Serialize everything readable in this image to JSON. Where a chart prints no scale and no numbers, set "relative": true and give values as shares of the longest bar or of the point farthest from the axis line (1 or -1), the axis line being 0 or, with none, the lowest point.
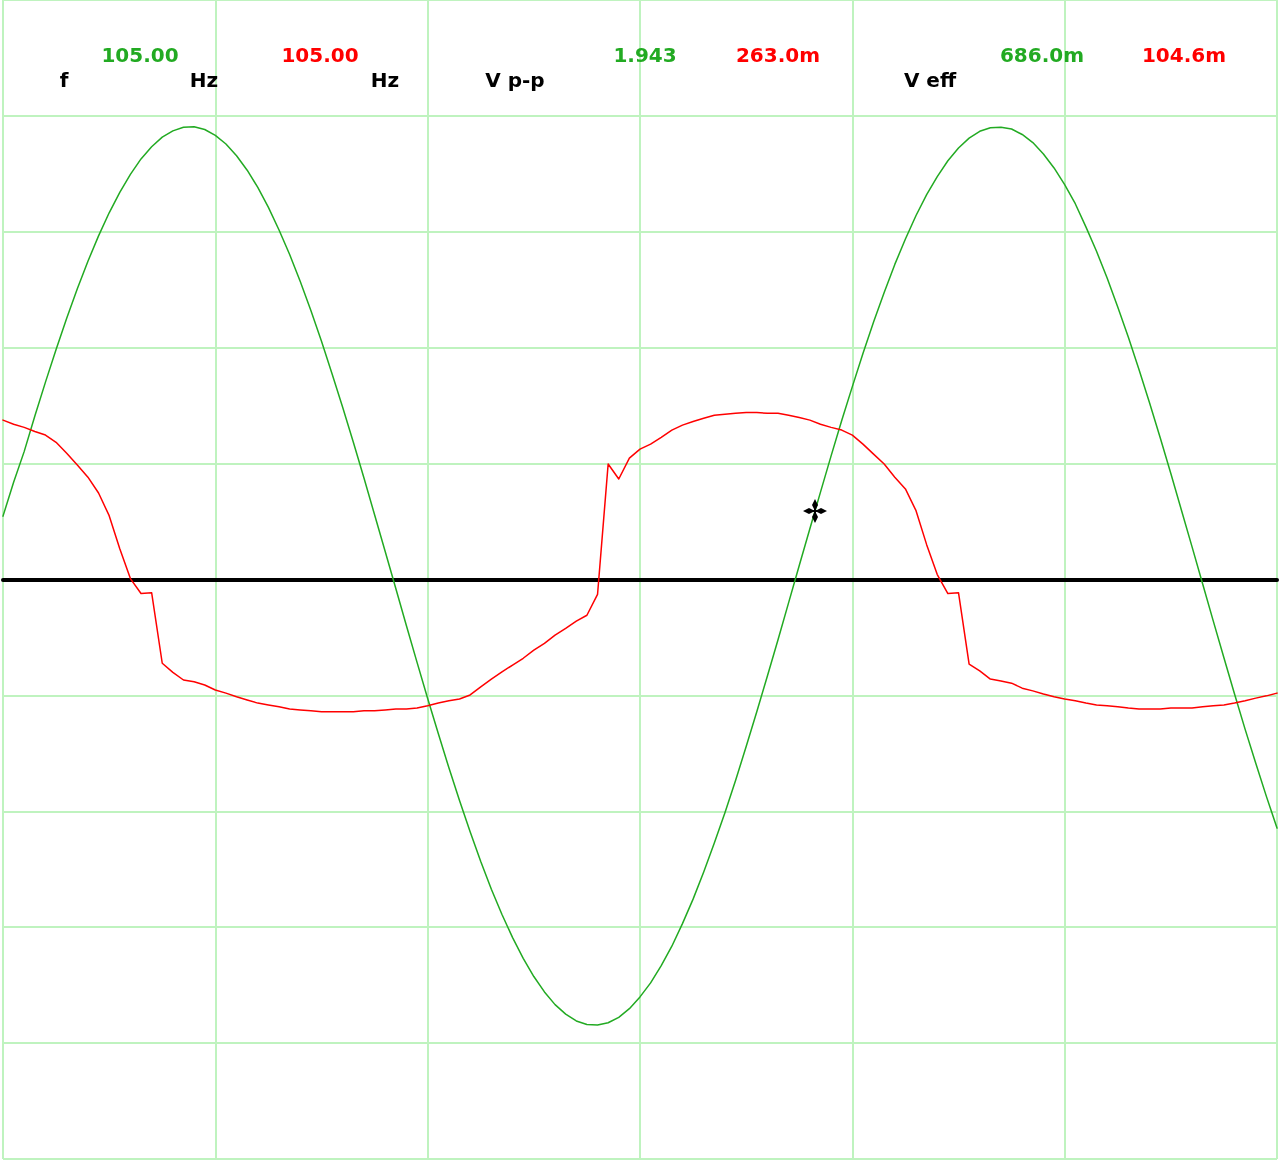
{
  "chart_data": {
    "type": "line",
    "relative": true,
    "grid": true,
    "categories": [
      null,
      null,
      null,
      null,
      null,
      null,
      null,
      null,
      null,
      null,
      null,
      null,
      null,
      null,
      null,
      null,
      null,
      null,
      null,
      null,
      null,
      null,
      null,
      null,
      null,
      null,
      null,
      null,
      null,
      null,
      null,
      null,
      null,
      null,
      null,
      null,
      null,
      null,
      null,
      null,
      null,
      null,
      null,
      null,
      null,
      null,
      null,
      null,
      null,
      null,
      null,
      null,
      null,
      null,
      null,
      null,
      null,
      null,
      null,
      null,
      null,
      null,
      null,
      null,
      null,
      null,
      null,
      null,
      null,
      null,
      null,
      null,
      null,
      null,
      null,
      null,
      null,
      null,
      null,
      null,
      null,
      null,
      null,
      null,
      null,
      null,
      null,
      null,
      null,
      null,
      null,
      null,
      null,
      null,
      null,
      null,
      null,
      null,
      null,
      null,
      null,
      null,
      null,
      null,
      null,
      null,
      null,
      null,
      null,
      null,
      null,
      null,
      null,
      null,
      null,
      null,
      null,
      null,
      null,
      null,
      null
    ],
    "series": [
      {
        "color": "#22aa22",
        "values": [
          0.14,
          0.215,
          0.283,
          0.361,
          0.436,
          0.508,
          0.577,
          0.642,
          0.703,
          0.759,
          0.81,
          0.855,
          0.895,
          0.929,
          0.956,
          0.977,
          0.991,
          0.999,
          1,
          0.994,
          0.981,
          0.962,
          0.936,
          0.904,
          0.866,
          0.822,
          0.772,
          0.718,
          0.658,
          0.594,
          0.526,
          0.454,
          0.38,
          0.303,
          0.224,
          0.143,
          0.062,
          -0.02,
          -0.102,
          -0.183,
          -0.263,
          -0.34,
          -0.416,
          -0.488,
          -0.557,
          -0.623,
          -0.684,
          -0.74,
          -0.791,
          -0.837,
          -0.877,
          -0.911,
          -0.939,
          -0.96,
          -0.975,
          -0.983,
          -0.984,
          -0.979,
          -0.967,
          -0.948,
          -0.922,
          -0.891,
          -0.853,
          -0.81,
          -0.76,
          -0.706,
          -0.646,
          -0.582,
          -0.515,
          -0.444,
          -0.369,
          -0.292,
          -0.213,
          -0.133,
          -0.051,
          0.031,
          0.112,
          0.193,
          0.273,
          0.351,
          0.426,
          0.499,
          0.569,
          0.634,
          0.696,
          0.752,
          0.804,
          0.85,
          0.89,
          0.925,
          0.953,
          0.975,
          0.99,
          0.998,
          0.999,
          0.995,
          0.983,
          0.965,
          0.94,
          0.909,
          0.872,
          0.83,
          0.779,
          0.725,
          0.666,
          0.602,
          0.535,
          0.464,
          0.39,
          0.313,
          0.234,
          0.153,
          0.072,
          -0.01,
          -0.092,
          -0.173,
          -0.253,
          -0.331,
          -0.406,
          -0.479,
          -0.549
        ]
      },
      {
        "color": "#ff0000",
        "values": [
          0.352,
          0.343,
          0.336,
          0.327,
          0.319,
          0.303,
          0.279,
          0.253,
          0.226,
          0.191,
          0.141,
          0.068,
          0.002,
          -0.031,
          -0.029,
          -0.185,
          -0.205,
          -0.222,
          -0.226,
          -0.233,
          -0.244,
          -0.251,
          -0.259,
          -0.266,
          -0.273,
          -0.277,
          -0.281,
          -0.286,
          -0.288,
          -0.29,
          -0.292,
          -0.292,
          -0.292,
          -0.292,
          -0.29,
          -0.29,
          -0.288,
          -0.286,
          -0.286,
          -0.284,
          -0.279,
          -0.273,
          -0.268,
          -0.264,
          -0.255,
          -0.237,
          -0.22,
          -0.204,
          -0.189,
          -0.174,
          -0.156,
          -0.141,
          -0.123,
          -0.108,
          -0.092,
          -0.079,
          -0.033,
          0.255,
          0.222,
          0.268,
          0.288,
          0.299,
          0.314,
          0.33,
          0.341,
          0.349,
          0.356,
          0.363,
          0.365,
          0.367,
          0.369,
          0.369,
          0.367,
          0.367,
          0.363,
          0.358,
          0.352,
          0.343,
          0.336,
          0.33,
          0.319,
          0.299,
          0.277,
          0.255,
          0.226,
          0.2,
          0.152,
          0.077,
          0.011,
          -0.031,
          -0.029,
          -0.187,
          -0.202,
          -0.22,
          -0.224,
          -0.229,
          -0.24,
          -0.246,
          -0.253,
          -0.259,
          -0.264,
          -0.268,
          -0.273,
          -0.277,
          -0.279,
          -0.281,
          -0.284,
          -0.286,
          -0.286,
          -0.286,
          -0.284,
          -0.284,
          -0.284,
          -0.281,
          -0.279,
          -0.277,
          -0.273,
          -0.268,
          -0.262,
          -0.257,
          -0.251
        ]
      }
    ],
    "annotations": [
      "f",
      "105.00",
      "Hz",
      "105.00",
      "Hz",
      "V p-p",
      "1.943",
      "263.0m",
      "V eff",
      "686.0m",
      "104.6m"
    ]
  }
}
